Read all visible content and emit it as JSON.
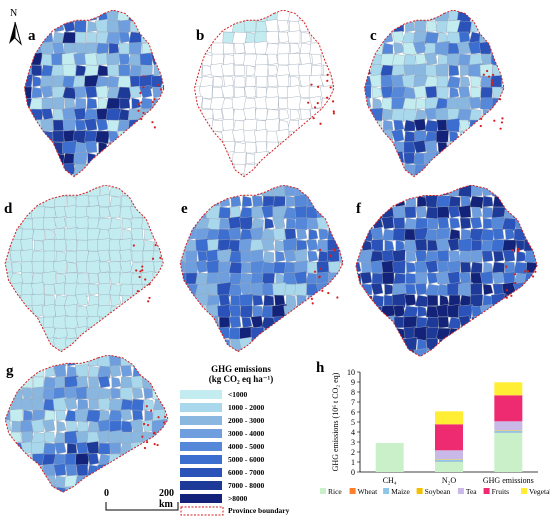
{
  "panels": [
    {
      "id": "a",
      "label": "a"
    },
    {
      "id": "b",
      "label": "b"
    },
    {
      "id": "c",
      "label": "c"
    },
    {
      "id": "d",
      "label": "d"
    },
    {
      "id": "e",
      "label": "e"
    },
    {
      "id": "f",
      "label": "f"
    },
    {
      "id": "g",
      "label": "g"
    }
  ],
  "north_label": "N",
  "legend": {
    "title_line1": "GHG emissions",
    "title_line2": "(kg CO₂ eq ha⁻¹)",
    "classes": [
      {
        "label": "<1000",
        "color": "#c2ecf0"
      },
      {
        "label": "1000 - 2000",
        "color": "#a9d8ec"
      },
      {
        "label": "2000 - 3000",
        "color": "#8ab7df"
      },
      {
        "label": "3000 - 4000",
        "color": "#6f9ede"
      },
      {
        "label": "4000 - 5000",
        "color": "#5588d8"
      },
      {
        "label": "5000 - 6000",
        "color": "#3c6ed0"
      },
      {
        "label": "6000 - 7000",
        "color": "#2a52b8"
      },
      {
        "label": "7000 - 8000",
        "color": "#1e3a99"
      },
      {
        "label": ">8000",
        "color": "#14237a"
      }
    ],
    "boundary_label": "Province boundary"
  },
  "scale_bar": {
    "start": "0",
    "end": "200 km"
  },
  "panel_h_label": "h",
  "chart_data": {
    "type": "bar",
    "stacked": true,
    "categories": [
      "CH₄",
      "N₂O",
      "GHG emissions"
    ],
    "ylabel": "GHG emissions (10⁶ t CO₂ eq)",
    "ylim": [
      0,
      10
    ],
    "yticks": [
      0,
      1,
      2,
      3,
      4,
      5,
      6,
      7,
      8,
      9,
      10
    ],
    "legend_position": "bottom",
    "series": [
      {
        "name": "Rice",
        "color": "#c9f0c9",
        "values": [
          2.9,
          1.0,
          3.9
        ]
      },
      {
        "name": "Wheat",
        "color": "#ff7f2a",
        "values": [
          0,
          0.02,
          0.02
        ]
      },
      {
        "name": "Maize",
        "color": "#8fc6e8",
        "values": [
          0,
          0.2,
          0.2
        ]
      },
      {
        "name": "Soybean",
        "color": "#f4c100",
        "values": [
          0,
          0.05,
          0.05
        ]
      },
      {
        "name": "Tea",
        "color": "#c9b9e8",
        "values": [
          0,
          0.9,
          0.9
        ]
      },
      {
        "name": "Fruits",
        "color": "#ee2a70",
        "values": [
          0,
          2.6,
          2.6
        ]
      },
      {
        "name": "Vegetables",
        "color": "#ffee33",
        "values": [
          0,
          1.3,
          1.3
        ]
      }
    ]
  }
}
